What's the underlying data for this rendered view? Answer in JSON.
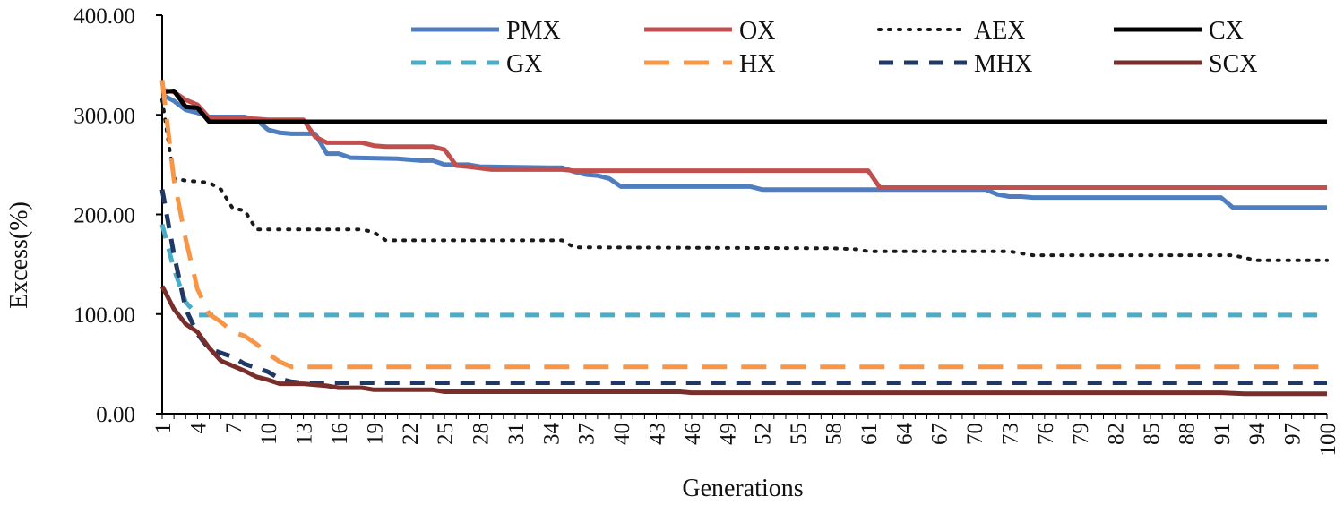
{
  "chart_data": {
    "type": "line",
    "title": "",
    "xlabel": "Generations",
    "ylabel": "Excess(%)",
    "xlim": [
      1,
      100
    ],
    "ylim": [
      0,
      400
    ],
    "y_ticks": [
      "0.00",
      "100.00",
      "200.00",
      "300.00",
      "400.00"
    ],
    "x_ticks": [
      1,
      4,
      7,
      10,
      13,
      16,
      19,
      22,
      25,
      28,
      31,
      34,
      37,
      40,
      43,
      46,
      49,
      52,
      55,
      58,
      61,
      64,
      67,
      70,
      73,
      76,
      79,
      82,
      85,
      88,
      91,
      94,
      97,
      100
    ],
    "grid": false,
    "legend": "top-right",
    "series": [
      {
        "name": "PMX",
        "color": "#4E7DC0",
        "dash": "solid",
        "points": [
          [
            1,
            320
          ],
          [
            2,
            314
          ],
          [
            3,
            305
          ],
          [
            4,
            302
          ],
          [
            5,
            298
          ],
          [
            8,
            298
          ],
          [
            9,
            295
          ],
          [
            10,
            285
          ],
          [
            11,
            282
          ],
          [
            12,
            281
          ],
          [
            14,
            281
          ],
          [
            15,
            261
          ],
          [
            16,
            261
          ],
          [
            17,
            257
          ],
          [
            21,
            256
          ],
          [
            23,
            254
          ],
          [
            24,
            254
          ],
          [
            25,
            250
          ],
          [
            27,
            250
          ],
          [
            28,
            248
          ],
          [
            34,
            247
          ],
          [
            35,
            247
          ],
          [
            36,
            243
          ],
          [
            37,
            240
          ],
          [
            38,
            239
          ],
          [
            39,
            236
          ],
          [
            40,
            228
          ],
          [
            51,
            228
          ],
          [
            52,
            225
          ],
          [
            71,
            225
          ],
          [
            72,
            220
          ],
          [
            73,
            218
          ],
          [
            74,
            218
          ],
          [
            75,
            217
          ],
          [
            91,
            217
          ],
          [
            92,
            207
          ],
          [
            100,
            207
          ]
        ]
      },
      {
        "name": "OX",
        "color": "#C0504D",
        "dash": "solid",
        "points": [
          [
            1,
            325
          ],
          [
            2,
            323
          ],
          [
            3,
            315
          ],
          [
            4,
            310
          ],
          [
            5,
            297
          ],
          [
            9,
            296
          ],
          [
            10,
            295
          ],
          [
            13,
            295
          ],
          [
            14,
            278
          ],
          [
            15,
            272
          ],
          [
            18,
            272
          ],
          [
            19,
            269
          ],
          [
            20,
            268
          ],
          [
            24,
            268
          ],
          [
            25,
            265
          ],
          [
            26,
            249
          ],
          [
            27,
            248
          ],
          [
            29,
            245
          ],
          [
            35,
            245
          ],
          [
            36,
            244
          ],
          [
            61,
            244
          ],
          [
            62,
            227
          ],
          [
            100,
            227
          ]
        ]
      },
      {
        "name": "AEX",
        "color": "#1A1A1A",
        "dash": "dot",
        "points": [
          [
            1,
            315
          ],
          [
            2,
            236
          ],
          [
            3,
            234
          ],
          [
            5,
            232
          ],
          [
            6,
            225
          ],
          [
            7,
            206
          ],
          [
            8,
            204
          ],
          [
            9,
            185
          ],
          [
            18,
            185
          ],
          [
            19,
            182
          ],
          [
            20,
            174
          ],
          [
            35,
            174
          ],
          [
            36,
            167
          ],
          [
            58,
            166
          ],
          [
            60,
            165
          ],
          [
            61,
            163
          ],
          [
            73,
            163
          ],
          [
            75,
            159
          ],
          [
            92,
            159
          ],
          [
            94,
            154
          ],
          [
            100,
            154
          ]
        ]
      },
      {
        "name": "CX",
        "color": "#000000",
        "dash": "solid",
        "points": [
          [
            1,
            323
          ],
          [
            2,
            324
          ],
          [
            3,
            308
          ],
          [
            4,
            307
          ],
          [
            5,
            293
          ],
          [
            100,
            293
          ]
        ]
      },
      {
        "name": "GX",
        "color": "#4BACC6",
        "dash": "dash",
        "points": [
          [
            1,
            190
          ],
          [
            2,
            145
          ],
          [
            3,
            112
          ],
          [
            4,
            99
          ],
          [
            100,
            99
          ]
        ]
      },
      {
        "name": "HX",
        "color": "#F79646",
        "dash": "longdash",
        "points": [
          [
            1,
            335
          ],
          [
            2,
            235
          ],
          [
            3,
            175
          ],
          [
            4,
            125
          ],
          [
            5,
            100
          ],
          [
            6,
            92
          ],
          [
            7,
            82
          ],
          [
            8,
            78
          ],
          [
            9,
            70
          ],
          [
            10,
            60
          ],
          [
            11,
            52
          ],
          [
            12,
            47
          ],
          [
            100,
            47
          ]
        ]
      },
      {
        "name": "MHX",
        "color": "#1F3864",
        "dash": "dash",
        "points": [
          [
            1,
            225
          ],
          [
            2,
            160
          ],
          [
            3,
            105
          ],
          [
            4,
            80
          ],
          [
            5,
            65
          ],
          [
            7,
            57
          ],
          [
            8,
            50
          ],
          [
            9,
            46
          ],
          [
            10,
            42
          ],
          [
            11,
            35
          ],
          [
            12,
            32
          ],
          [
            13,
            31
          ],
          [
            100,
            31
          ]
        ]
      },
      {
        "name": "SCX",
        "color": "#7A2E2B",
        "dash": "solid",
        "points": [
          [
            1,
            128
          ],
          [
            2,
            105
          ],
          [
            3,
            90
          ],
          [
            4,
            82
          ],
          [
            5,
            66
          ],
          [
            6,
            53
          ],
          [
            7,
            48
          ],
          [
            8,
            43
          ],
          [
            9,
            37
          ],
          [
            10,
            34
          ],
          [
            11,
            30
          ],
          [
            13,
            30
          ],
          [
            15,
            28
          ],
          [
            16,
            26
          ],
          [
            18,
            26
          ],
          [
            19,
            24
          ],
          [
            24,
            24
          ],
          [
            25,
            22
          ],
          [
            45,
            22
          ],
          [
            46,
            21
          ],
          [
            91,
            21
          ],
          [
            93,
            20
          ],
          [
            100,
            20
          ]
        ]
      }
    ]
  }
}
